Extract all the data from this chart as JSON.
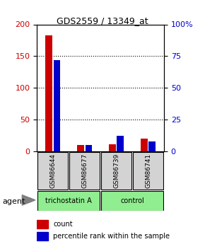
{
  "title": "GDS2559 / 13349_at",
  "samples": [
    "GSM86644",
    "GSM86677",
    "GSM86739",
    "GSM86741"
  ],
  "groups": [
    "trichostatin A",
    "trichostatin A",
    "control",
    "control"
  ],
  "group_colors": {
    "trichostatin A": "#90EE90",
    "control": "#90EE90"
  },
  "count_values": [
    183,
    10,
    11,
    20
  ],
  "percentile_values": [
    72,
    5,
    12,
    8
  ],
  "left_ylim": [
    0,
    200
  ],
  "right_ylim": [
    0,
    100
  ],
  "left_yticks": [
    0,
    50,
    100,
    150,
    200
  ],
  "right_yticks": [
    0,
    25,
    50,
    75,
    100
  ],
  "right_yticklabels": [
    "0",
    "25",
    "50",
    "75",
    "100%"
  ],
  "bar_width": 0.35,
  "count_color": "#CC0000",
  "percentile_color": "#0000CC",
  "bg_color": "#ffffff",
  "plot_bg": "#ffffff",
  "grid_color": "#000000",
  "sample_box_color": "#D3D3D3",
  "agent_label": "agent",
  "legend_count": "count",
  "legend_percentile": "percentile rank within the sample"
}
